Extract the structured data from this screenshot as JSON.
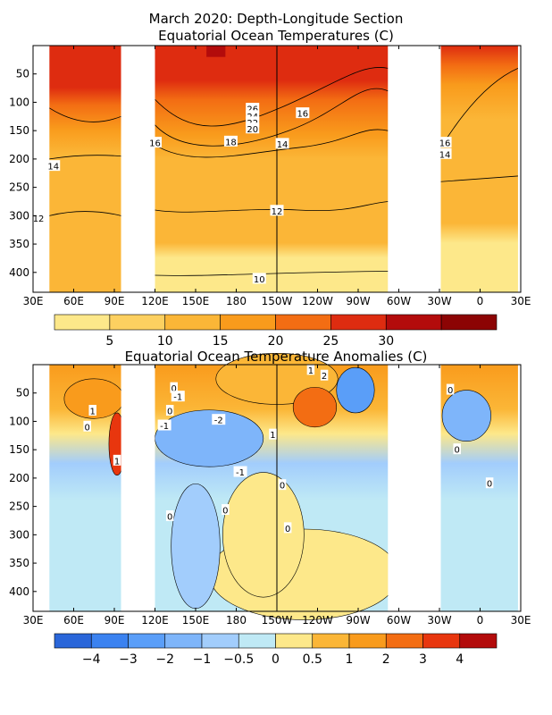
{
  "chart_data": [
    {
      "type": "heatmap",
      "title": "March 2020: Depth-Longitude Section",
      "subtitle": "Equatorial Ocean Temperatures (C)",
      "x_ticks": [
        "30E",
        "60E",
        "90E",
        "120E",
        "150E",
        "180",
        "150W",
        "120W",
        "90W",
        "60W",
        "30W",
        "0",
        "30E"
      ],
      "y_ticks": [
        "50",
        "100",
        "150",
        "200",
        "250",
        "300",
        "350",
        "400"
      ],
      "xlim_deg_east": [
        30,
        390
      ],
      "ylim_depth_m": [
        0,
        435
      ],
      "data_columns_deg_east": [
        [
          42,
          95
        ],
        [
          120,
          292
        ],
        [
          331,
          388
        ]
      ],
      "colorbar": {
        "labels": [
          "5",
          "10",
          "15",
          "20",
          "25",
          "30"
        ],
        "colors": [
          "#fde88a",
          "#fdd060",
          "#fbb637",
          "#f99b1c",
          "#f36d13",
          "#de2c10",
          "#b30b0b",
          "#8c0404"
        ]
      },
      "contour_labels": [
        {
          "text": "26",
          "lon": 192,
          "depth": 112
        },
        {
          "text": "24",
          "lon": 192,
          "depth": 125
        },
        {
          "text": "22",
          "lon": 192,
          "depth": 136
        },
        {
          "text": "20",
          "lon": 192,
          "depth": 147
        },
        {
          "text": "18",
          "lon": 176,
          "depth": 170
        },
        {
          "text": "16",
          "lon": 229,
          "depth": 120
        },
        {
          "text": "16",
          "lon": 120,
          "depth": 172
        },
        {
          "text": "16",
          "lon": 334,
          "depth": 172
        },
        {
          "text": "14",
          "lon": 45,
          "depth": 213
        },
        {
          "text": "14",
          "lon": 214,
          "depth": 174
        },
        {
          "text": "14",
          "lon": 334,
          "depth": 192
        },
        {
          "text": "12",
          "lon": 34,
          "depth": 305
        },
        {
          "text": "12",
          "lon": 210,
          "depth": 292
        },
        {
          "text": "10",
          "lon": 197,
          "depth": 412
        }
      ]
    },
    {
      "type": "heatmap",
      "title": "Equatorial Ocean Temperature Anomalies (C)",
      "x_ticks": [
        "30E",
        "60E",
        "90E",
        "120E",
        "150E",
        "180",
        "150W",
        "120W",
        "90W",
        "60W",
        "30W",
        "0",
        "30E"
      ],
      "y_ticks": [
        "50",
        "100",
        "150",
        "200",
        "250",
        "300",
        "350",
        "400"
      ],
      "xlim_deg_east": [
        30,
        390
      ],
      "ylim_depth_m": [
        0,
        435
      ],
      "data_columns_deg_east": [
        [
          42,
          95
        ],
        [
          120,
          292
        ],
        [
          331,
          388
        ]
      ],
      "colorbar": {
        "labels": [
          "−4",
          "−3",
          "−2",
          "−1",
          "−0.5",
          "0",
          "0.5",
          "1",
          "2",
          "3",
          "4"
        ],
        "colors": [
          "#2a66d9",
          "#3b82f0",
          "#5a9ef8",
          "#7eb5fa",
          "#a2cdfc",
          "#bfe9f5",
          "#fde88a",
          "#fbb637",
          "#f99b1c",
          "#f36d13",
          "#e8360e",
          "#b30b0b"
        ]
      },
      "contour_labels": [
        {
          "text": "1",
          "lon": 235,
          "depth": 10
        },
        {
          "text": "2",
          "lon": 245,
          "depth": 20
        },
        {
          "text": "1",
          "lon": 74,
          "depth": 82
        },
        {
          "text": "0",
          "lon": 70,
          "depth": 110
        },
        {
          "text": "1",
          "lon": 92,
          "depth": 170
        },
        {
          "text": "0",
          "lon": 134,
          "depth": 42
        },
        {
          "text": "-1",
          "lon": 137,
          "depth": 57
        },
        {
          "text": "0",
          "lon": 131,
          "depth": 82
        },
        {
          "text": "-2",
          "lon": 167,
          "depth": 98
        },
        {
          "text": "-1",
          "lon": 127,
          "depth": 108
        },
        {
          "text": "1",
          "lon": 207,
          "depth": 124
        },
        {
          "text": "-1",
          "lon": 183,
          "depth": 190
        },
        {
          "text": "0",
          "lon": 214,
          "depth": 213
        },
        {
          "text": "0",
          "lon": 172,
          "depth": 257
        },
        {
          "text": "0",
          "lon": 131,
          "depth": 268
        },
        {
          "text": "0",
          "lon": 218,
          "depth": 289
        },
        {
          "text": "0",
          "lon": 338,
          "depth": 45
        },
        {
          "text": "0",
          "lon": 343,
          "depth": 150
        },
        {
          "text": "0",
          "lon": 367,
          "depth": 210
        }
      ]
    }
  ]
}
